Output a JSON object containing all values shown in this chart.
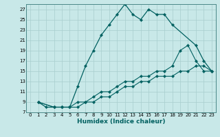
{
  "title": "",
  "xlabel": "Humidex (Indice chaleur)",
  "background_color": "#c8e8e8",
  "grid_color": "#a8cece",
  "line_color": "#006060",
  "xlim": [
    -0.5,
    23.5
  ],
  "ylim": [
    7,
    28
  ],
  "xticks": [
    0,
    1,
    2,
    3,
    4,
    5,
    6,
    7,
    8,
    9,
    10,
    11,
    12,
    13,
    14,
    15,
    16,
    17,
    18,
    19,
    20,
    21,
    22,
    23
  ],
  "yticks": [
    7,
    9,
    11,
    13,
    15,
    17,
    19,
    21,
    23,
    25,
    27
  ],
  "series1_x": [
    1,
    2,
    3,
    4,
    5,
    6,
    7,
    8,
    9,
    10,
    11,
    12,
    13,
    14,
    15,
    16,
    17,
    18,
    21,
    22,
    23
  ],
  "series1_y": [
    9,
    8,
    8,
    8,
    8,
    12,
    16,
    19,
    22,
    24,
    26,
    28,
    26,
    25,
    27,
    26,
    26,
    24,
    20,
    17,
    15
  ],
  "series2_x": [
    1,
    3,
    4,
    5,
    6,
    7,
    8,
    9,
    10,
    11,
    12,
    13,
    14,
    15,
    16,
    17,
    18,
    19,
    20,
    21,
    22,
    23
  ],
  "series2_y": [
    9,
    8,
    8,
    8,
    9,
    9,
    10,
    11,
    11,
    12,
    13,
    13,
    14,
    14,
    15,
    15,
    16,
    19,
    20,
    17,
    15,
    15
  ],
  "series3_x": [
    1,
    3,
    4,
    5,
    6,
    7,
    8,
    9,
    10,
    11,
    12,
    13,
    14,
    15,
    16,
    17,
    18,
    19,
    20,
    21,
    22,
    23
  ],
  "series3_y": [
    9,
    8,
    8,
    8,
    8,
    9,
    9,
    10,
    10,
    11,
    12,
    12,
    13,
    13,
    14,
    14,
    14,
    15,
    15,
    16,
    16,
    15
  ],
  "tick_fontsize": 5,
  "xlabel_fontsize": 6.5
}
